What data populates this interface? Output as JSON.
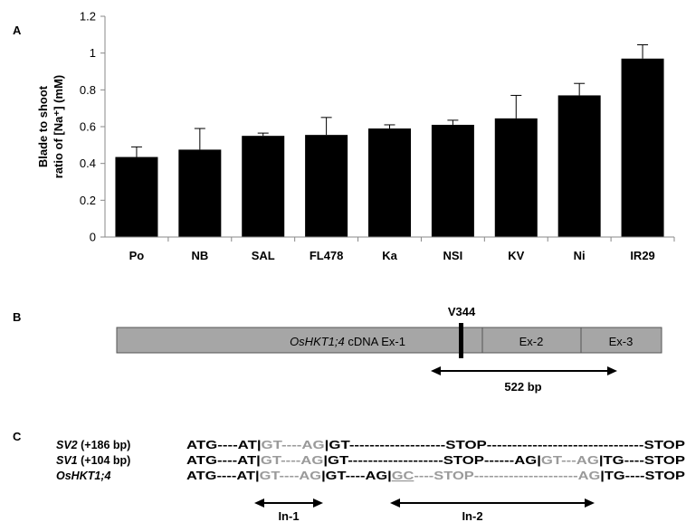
{
  "panels": {
    "a": "A",
    "b": "B",
    "c": "C"
  },
  "chart_data": {
    "type": "bar",
    "categories": [
      "Po",
      "NB",
      "SAL",
      "FL478",
      "Ka",
      "NSI",
      "KV",
      "Ni",
      "IR29"
    ],
    "values": [
      0.435,
      0.475,
      0.55,
      0.555,
      0.59,
      0.61,
      0.645,
      0.77,
      0.97
    ],
    "errors": [
      0.055,
      0.115,
      0.015,
      0.095,
      0.02,
      0.025,
      0.125,
      0.065,
      0.075
    ],
    "ylabel_line1": "Blade to shoot",
    "ylabel_line2": "ratio of [Na⁺] (mM)",
    "ylim": [
      0,
      1.2
    ],
    "yticks": [
      "0",
      "0.2",
      "0.4",
      "0.6",
      "0.8",
      "1",
      "1.2"
    ],
    "grid": false,
    "colors": {
      "bar": "#000000",
      "axis": "#888888"
    }
  },
  "gene_map": {
    "exon1_italic": "OsHKT1;4",
    "exon1_rest": " cDNA Ex-1",
    "exon2": "Ex-2",
    "exon3": "Ex-3",
    "site": "V344",
    "size": "522 bp",
    "colors": {
      "box": "#a6a6a6",
      "border": "#555555"
    }
  },
  "splicing": {
    "rows": [
      {
        "name_italic": "SV2",
        "name_rest": " (+186 bp)",
        "segments": [
          {
            "t": "ATG----AT|",
            "c": "black"
          },
          {
            "t": "GT----AG",
            "c": "gray"
          },
          {
            "t": "|GT-------------------STOP-------------------------------STOP",
            "c": "black"
          }
        ]
      },
      {
        "name_italic": "SV1",
        "name_rest": " (+104 bp)",
        "segments": [
          {
            "t": "ATG----AT|",
            "c": "black"
          },
          {
            "t": "GT----AG",
            "c": "gray"
          },
          {
            "t": "|GT-------------------STOP------AG|",
            "c": "black"
          },
          {
            "t": "GT---AG",
            "c": "gray"
          },
          {
            "t": "|TG----STOP",
            "c": "black"
          }
        ]
      },
      {
        "name_italic": "OsHKT1;4",
        "name_rest": "",
        "segments": [
          {
            "t": "ATG----AT|",
            "c": "black"
          },
          {
            "t": "GT----AG",
            "c": "gray"
          },
          {
            "t": "|GT----AG|",
            "c": "black"
          },
          {
            "t": "GC",
            "c": "gray",
            "u": true
          },
          {
            "t": "----STOP---------------------AG",
            "c": "gray"
          },
          {
            "t": "|TG----STOP",
            "c": "black"
          }
        ]
      }
    ],
    "introns": [
      "In-1",
      "In-2"
    ],
    "colors": {
      "gray": "#9a9a9a"
    }
  }
}
